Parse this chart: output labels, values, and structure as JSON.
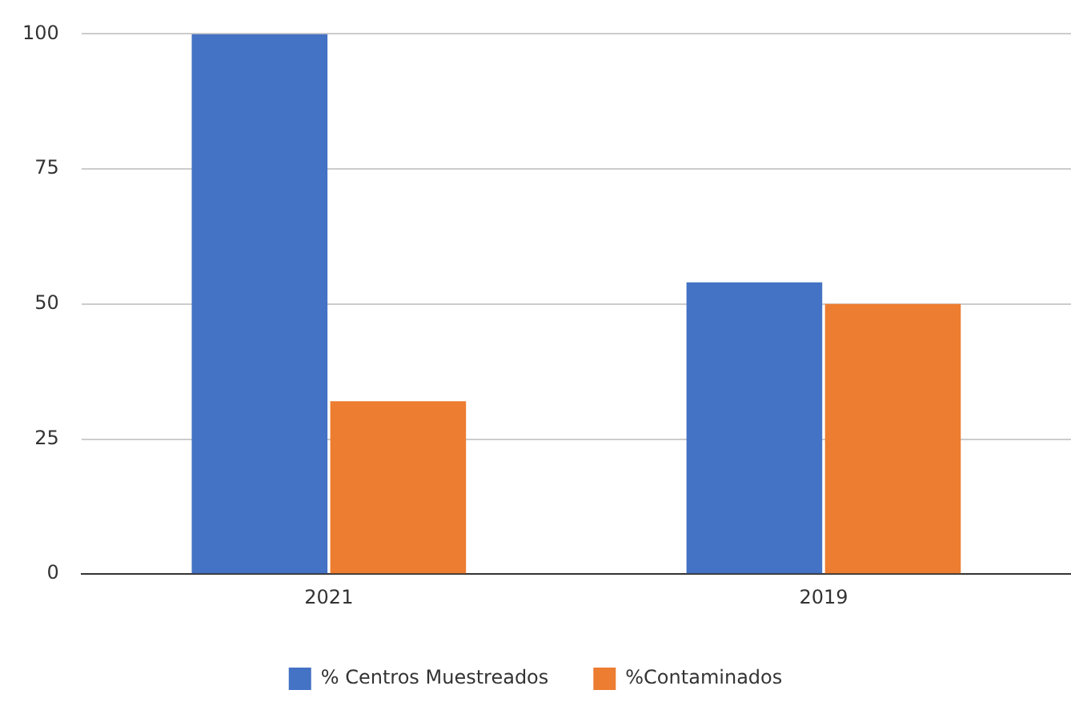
{
  "chart_data": {
    "type": "bar",
    "categories": [
      "2021",
      "2019"
    ],
    "series": [
      {
        "name": "% Centros Muestreados",
        "color": "#4472c4",
        "values": [
          100,
          54
        ]
      },
      {
        "name": "%Contaminados",
        "color": "#ed7d31",
        "values": [
          32,
          50
        ]
      }
    ],
    "ylim": [
      0,
      100
    ],
    "yticks": [
      0,
      25,
      50,
      75,
      100
    ],
    "grid": "y",
    "legend": "bottom"
  }
}
